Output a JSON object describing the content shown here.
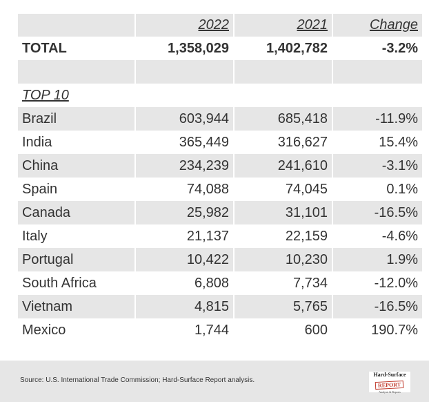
{
  "chart_data": {
    "type": "table",
    "columns": [
      "",
      "2022",
      "2021",
      "Change"
    ],
    "total": {
      "label": "TOTAL",
      "v2022": "1,358,029",
      "v2021": "1,402,782",
      "change": "-3.2%"
    },
    "section_label": "TOP 10",
    "rows": [
      {
        "label": "Brazil",
        "v2022": "603,944",
        "v2021": "685,418",
        "change": "-11.9%"
      },
      {
        "label": "India",
        "v2022": "365,449",
        "v2021": "316,627",
        "change": "15.4%"
      },
      {
        "label": "China",
        "v2022": "234,239",
        "v2021": "241,610",
        "change": "-3.1%"
      },
      {
        "label": "Spain",
        "v2022": "74,088",
        "v2021": "74,045",
        "change": "0.1%"
      },
      {
        "label": "Canada",
        "v2022": "25,982",
        "v2021": "31,101",
        "change": "-16.5%"
      },
      {
        "label": "Italy",
        "v2022": "21,137",
        "v2021": "22,159",
        "change": "-4.6%"
      },
      {
        "label": "Portugal",
        "v2022": "10,422",
        "v2021": "10,230",
        "change": "1.9%"
      },
      {
        "label": "South Africa",
        "v2022": "6,808",
        "v2021": "7,734",
        "change": "-12.0%"
      },
      {
        "label": "Vietnam",
        "v2022": "4,815",
        "v2021": "5,765",
        "change": "-16.5%"
      },
      {
        "label": "Mexico",
        "v2022": "1,744",
        "v2021": "600",
        "change": "190.7%"
      }
    ]
  },
  "footer": {
    "source": "Source: U.S. International Trade Commission; Hard-Surface Report analysis.",
    "logo": {
      "line1": "Hard-Surface",
      "line2": "REPORT",
      "line3": "Analysis & Reports"
    }
  },
  "colors": {
    "stripe": "#e6e6e6",
    "text": "#333333"
  }
}
